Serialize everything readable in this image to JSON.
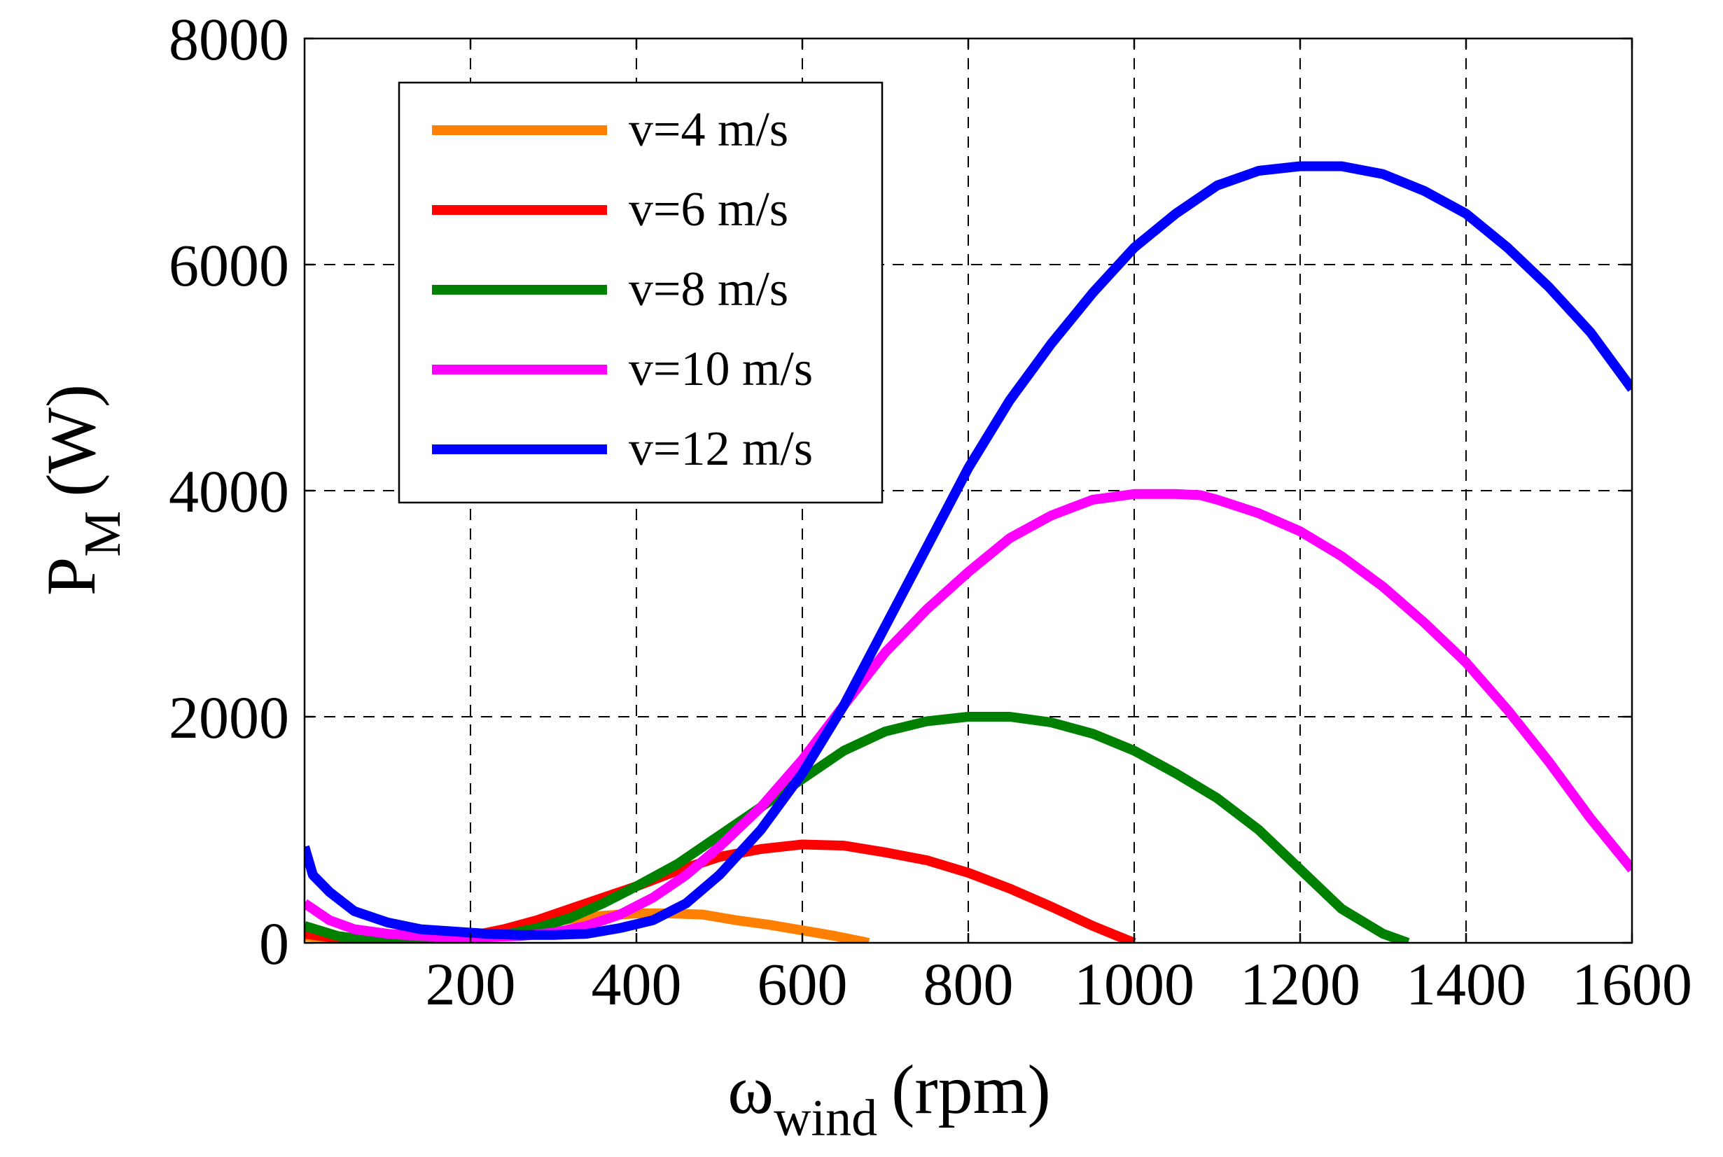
{
  "chart_data": {
    "type": "line",
    "title": "",
    "xlabel": {
      "main": "ω",
      "sub": "wind",
      "unit": "(rpm)"
    },
    "ylabel": {
      "main": "P",
      "sub": "M",
      "unit": "(W)"
    },
    "xlim": [
      0,
      1600
    ],
    "ylim": [
      0,
      8000
    ],
    "xticks": [
      200,
      400,
      600,
      800,
      1000,
      1200,
      1400,
      1600
    ],
    "yticks": [
      0,
      2000,
      4000,
      6000,
      8000
    ],
    "xtick_labels": [
      "200",
      "400",
      "600",
      "800",
      "1000",
      "1200",
      "1400",
      "1600"
    ],
    "ytick_labels": [
      "0",
      "2000",
      "4000",
      "6000",
      "8000"
    ],
    "grid": true,
    "legend_position": "top-left",
    "series": [
      {
        "name": "v=4 m/s",
        "color": "#FF8000",
        "x": [
          0,
          60,
          120,
          180,
          200,
          240,
          280,
          320,
          360,
          400,
          440,
          480,
          520,
          560,
          600,
          640,
          680
        ],
        "y": [
          60,
          30,
          20,
          40,
          60,
          120,
          170,
          210,
          240,
          260,
          260,
          250,
          200,
          160,
          110,
          60,
          0
        ]
      },
      {
        "name": "v=6 m/s",
        "color": "#FF0000",
        "x": [
          0,
          40,
          80,
          120,
          160,
          200,
          240,
          280,
          320,
          360,
          400,
          450,
          500,
          550,
          600,
          650,
          700,
          750,
          800,
          850,
          900,
          950,
          1000
        ],
        "y": [
          80,
          40,
          20,
          20,
          30,
          60,
          120,
          200,
          300,
          400,
          500,
          640,
          760,
          830,
          870,
          860,
          800,
          730,
          620,
          480,
          320,
          150,
          0
        ]
      },
      {
        "name": "v=8 m/s",
        "color": "#008000",
        "x": [
          0,
          40,
          80,
          120,
          160,
          200,
          240,
          280,
          320,
          360,
          400,
          450,
          500,
          550,
          600,
          650,
          700,
          750,
          800,
          850,
          900,
          950,
          1000,
          1050,
          1100,
          1150,
          1200,
          1250,
          1300,
          1330
        ],
        "y": [
          150,
          60,
          20,
          10,
          10,
          30,
          70,
          130,
          220,
          350,
          500,
          700,
          950,
          1200,
          1450,
          1700,
          1870,
          1960,
          2000,
          2000,
          1950,
          1850,
          1700,
          1500,
          1280,
          1000,
          650,
          300,
          80,
          0
        ]
      },
      {
        "name": "v=10 m/s",
        "color": "#FF00FF",
        "x": [
          0,
          30,
          60,
          100,
          140,
          180,
          220,
          260,
          300,
          340,
          380,
          420,
          460,
          500,
          550,
          600,
          650,
          700,
          750,
          800,
          850,
          900,
          950,
          1000,
          1050,
          1080,
          1100,
          1150,
          1200,
          1250,
          1300,
          1350,
          1400,
          1450,
          1500,
          1550,
          1600
        ],
        "y": [
          350,
          200,
          120,
          80,
          60,
          50,
          50,
          60,
          90,
          150,
          250,
          400,
          600,
          850,
          1200,
          1620,
          2100,
          2570,
          2950,
          3280,
          3580,
          3780,
          3920,
          3970,
          3970,
          3960,
          3920,
          3800,
          3640,
          3420,
          3150,
          2830,
          2480,
          2060,
          1600,
          1100,
          650
        ]
      },
      {
        "name": "v=12 m/s",
        "color": "#0000FF",
        "x": [
          0,
          10,
          30,
          60,
          100,
          140,
          180,
          220,
          260,
          300,
          340,
          380,
          420,
          460,
          500,
          550,
          600,
          650,
          700,
          750,
          800,
          850,
          900,
          950,
          1000,
          1050,
          1100,
          1150,
          1200,
          1250,
          1300,
          1350,
          1400,
          1450,
          1500,
          1550,
          1600
        ],
        "y": [
          850,
          600,
          450,
          280,
          180,
          120,
          100,
          80,
          70,
          70,
          80,
          130,
          200,
          350,
          600,
          1000,
          1500,
          2100,
          2800,
          3500,
          4200,
          4800,
          5300,
          5750,
          6150,
          6450,
          6700,
          6830,
          6870,
          6870,
          6800,
          6650,
          6450,
          6150,
          5800,
          5400,
          4900
        ]
      }
    ]
  }
}
